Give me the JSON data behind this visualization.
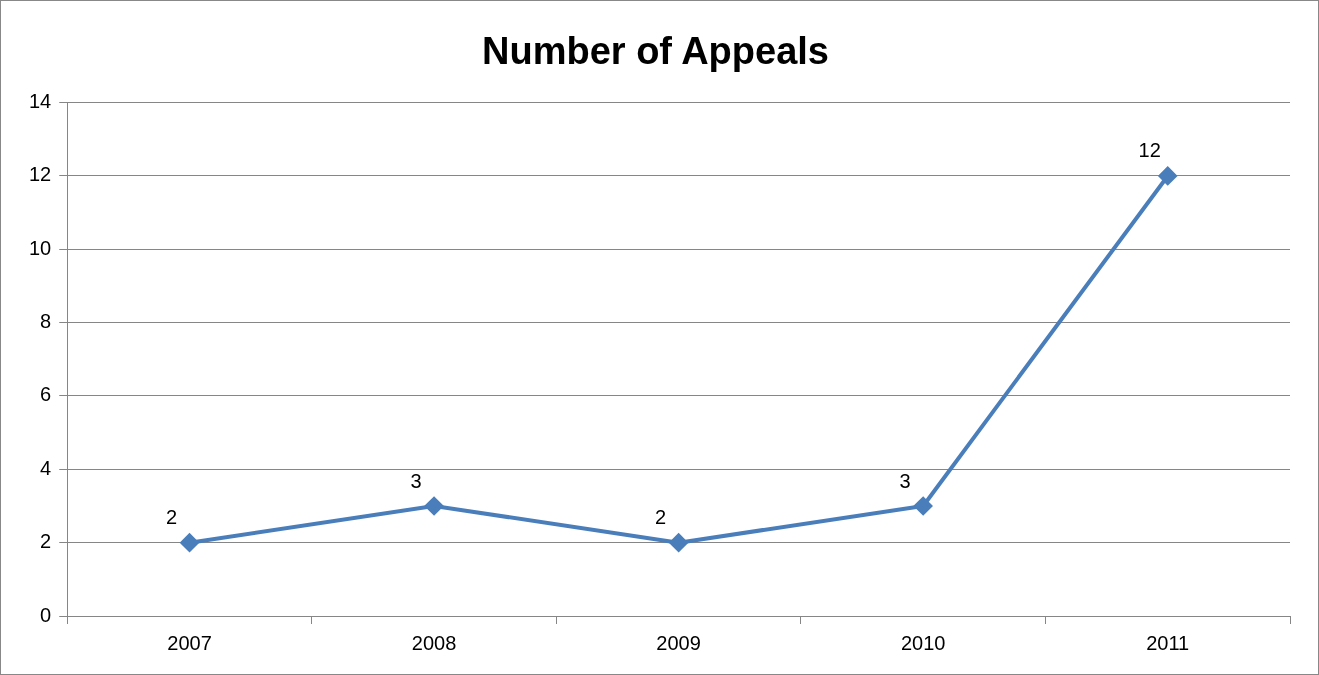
{
  "chart_data": {
    "type": "line",
    "title": "Number of Appeals",
    "categories": [
      "2007",
      "2008",
      "2009",
      "2010",
      "2011"
    ],
    "series": [
      {
        "color": "#4a7ebb",
        "values": [
          2,
          3,
          2,
          3,
          12
        ]
      }
    ],
    "ylim": [
      0,
      14
    ],
    "yticks": [
      0,
      2,
      4,
      6,
      8,
      10,
      12,
      14
    ],
    "grid": "y",
    "legend": false,
    "marker": "diamond",
    "line_style": "solid",
    "data_labels": true
  }
}
